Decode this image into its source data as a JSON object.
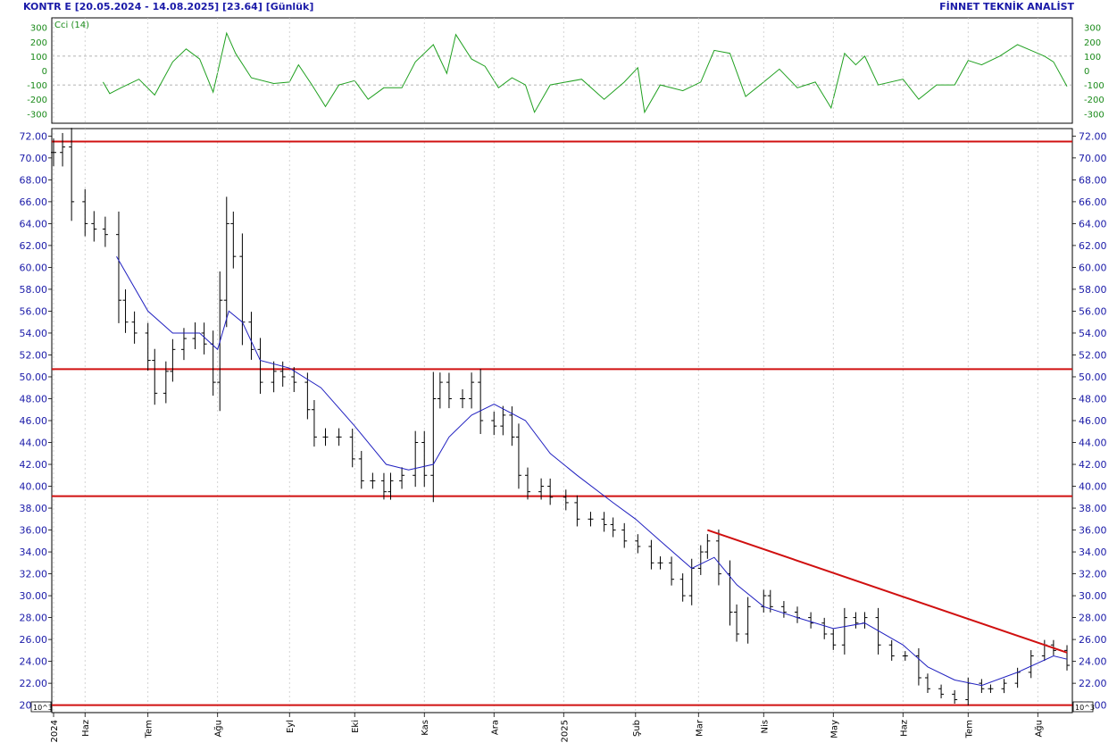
{
  "header": {
    "left": "KONTR E  [20.05.2024 - 14.08.2025]  [23.64]  [Günlük]",
    "right": "FİNNET TEKNİK ANALİST"
  },
  "cci_panel": {
    "label": "Cci (14)",
    "ticks": [
      300,
      200,
      100,
      0,
      -100,
      -200,
      -300
    ],
    "ylim": [
      -360,
      360
    ],
    "line_color": "#20a020"
  },
  "price_panel": {
    "ticks": [
      "72.00",
      "70.00",
      "68.00",
      "66.00",
      "64.00",
      "62.00",
      "60.00",
      "58.00",
      "56.00",
      "54.00",
      "52.00",
      "50.00",
      "48.00",
      "46.00",
      "44.00",
      "42.00",
      "40.00",
      "38.00",
      "36.00",
      "34.00",
      "32.00",
      "30.00",
      "28.00",
      "26.00",
      "24.00",
      "22.00",
      "20.00"
    ],
    "ylim": [
      19.4,
      72.6
    ],
    "scale_label": "10^3"
  },
  "x_axis": {
    "labels": [
      {
        "t": "2024-05-20",
        "label": "2024"
      },
      {
        "t": "2024-06-03",
        "label": "Haz"
      },
      {
        "t": "2024-07-01",
        "label": "Tem"
      },
      {
        "t": "2024-08-01",
        "label": "Ağu"
      },
      {
        "t": "2024-09-02",
        "label": "Eyl"
      },
      {
        "t": "2024-10-01",
        "label": "Eki"
      },
      {
        "t": "2024-11-01",
        "label": "Kas"
      },
      {
        "t": "2024-12-02",
        "label": "Ara"
      },
      {
        "t": "2025-01-02",
        "label": "2025"
      },
      {
        "t": "2025-02-03",
        "label": "Şub"
      },
      {
        "t": "2025-03-03",
        "label": "Mar"
      },
      {
        "t": "2025-04-01",
        "label": "Nis"
      },
      {
        "t": "2025-05-02",
        "label": "May"
      },
      {
        "t": "2025-06-02",
        "label": "Haz"
      },
      {
        "t": "2025-07-01",
        "label": "Tem"
      },
      {
        "t": "2025-08-01",
        "label": "Ağu"
      }
    ],
    "start": "2024-05-20",
    "end": "2025-08-14"
  },
  "chart_data": {
    "type": "line",
    "title": "KONTR E  [20.05.2024 - 14.08.2025]  [23.64]  [Günlük]",
    "last_price": 23.64,
    "series": [
      {
        "type": "ohlc",
        "color": "#000000",
        "points": [
          [
            "2024-05-20",
            70.5
          ],
          [
            "2024-05-24",
            71.0
          ],
          [
            "2024-05-28",
            66.0
          ],
          [
            "2024-06-03",
            64.0
          ],
          [
            "2024-06-07",
            63.5
          ],
          [
            "2024-06-12",
            63.0
          ],
          [
            "2024-06-18",
            57.0
          ],
          [
            "2024-06-21",
            55.0
          ],
          [
            "2024-06-25",
            54.0
          ],
          [
            "2024-07-01",
            51.5
          ],
          [
            "2024-07-04",
            48.5
          ],
          [
            "2024-07-09",
            50.5
          ],
          [
            "2024-07-12",
            52.5
          ],
          [
            "2024-07-17",
            53.5
          ],
          [
            "2024-07-22",
            54.0
          ],
          [
            "2024-07-26",
            53.0
          ],
          [
            "2024-07-30",
            49.5
          ],
          [
            "2024-08-02",
            57.0
          ],
          [
            "2024-08-05",
            64.0
          ],
          [
            "2024-08-08",
            61.0
          ],
          [
            "2024-08-12",
            55.0
          ],
          [
            "2024-08-16",
            52.5
          ],
          [
            "2024-08-20",
            49.5
          ],
          [
            "2024-08-26",
            50.5
          ],
          [
            "2024-08-30",
            50.0
          ],
          [
            "2024-09-04",
            49.5
          ],
          [
            "2024-09-10",
            47.0
          ],
          [
            "2024-09-13",
            44.5
          ],
          [
            "2024-09-18",
            44.5
          ],
          [
            "2024-09-24",
            44.5
          ],
          [
            "2024-09-30",
            42.5
          ],
          [
            "2024-10-04",
            40.5
          ],
          [
            "2024-10-09",
            40.5
          ],
          [
            "2024-10-14",
            39.5
          ],
          [
            "2024-10-17",
            40.5
          ],
          [
            "2024-10-22",
            41.0
          ],
          [
            "2024-10-28",
            44.0
          ],
          [
            "2024-11-01",
            41.0
          ],
          [
            "2024-11-05",
            48.0
          ],
          [
            "2024-11-08",
            49.5
          ],
          [
            "2024-11-12",
            48.0
          ],
          [
            "2024-11-18",
            48.0
          ],
          [
            "2024-11-22",
            49.5
          ],
          [
            "2024-11-26",
            46.0
          ],
          [
            "2024-12-02",
            45.5
          ],
          [
            "2024-12-06",
            46.5
          ],
          [
            "2024-12-10",
            44.5
          ],
          [
            "2024-12-13",
            41.0
          ],
          [
            "2024-12-17",
            39.5
          ],
          [
            "2024-12-23",
            40.0
          ],
          [
            "2024-12-27",
            39.0
          ],
          [
            "2025-01-03",
            38.5
          ],
          [
            "2025-01-08",
            37.0
          ],
          [
            "2025-01-14",
            37.0
          ],
          [
            "2025-01-20",
            36.5
          ],
          [
            "2025-01-24",
            36.0
          ],
          [
            "2025-01-29",
            35.0
          ],
          [
            "2025-02-04",
            34.5
          ],
          [
            "2025-02-10",
            33.0
          ],
          [
            "2025-02-14",
            33.0
          ],
          [
            "2025-02-19",
            31.5
          ],
          [
            "2025-02-24",
            30.0
          ],
          [
            "2025-02-28",
            32.5
          ],
          [
            "2025-03-04",
            34.0
          ],
          [
            "2025-03-07",
            35.0
          ],
          [
            "2025-03-12",
            32.0
          ],
          [
            "2025-03-17",
            28.5
          ],
          [
            "2025-03-20",
            26.5
          ],
          [
            "2025-03-25",
            29.0
          ],
          [
            "2025-04-01",
            30.0
          ],
          [
            "2025-04-04",
            29.0
          ],
          [
            "2025-04-10",
            28.5
          ],
          [
            "2025-04-16",
            28.0
          ],
          [
            "2025-04-22",
            27.5
          ],
          [
            "2025-04-28",
            26.5
          ],
          [
            "2025-05-02",
            25.5
          ],
          [
            "2025-05-07",
            28.0
          ],
          [
            "2025-05-12",
            27.5
          ],
          [
            "2025-05-16",
            28.0
          ],
          [
            "2025-05-22",
            25.5
          ],
          [
            "2025-05-28",
            24.5
          ],
          [
            "2025-06-03",
            24.5
          ],
          [
            "2025-06-09",
            22.5
          ],
          [
            "2025-06-13",
            21.5
          ],
          [
            "2025-06-19",
            21.0
          ],
          [
            "2025-06-25",
            20.5
          ],
          [
            "2025-07-01",
            22.0
          ],
          [
            "2025-07-07",
            21.5
          ],
          [
            "2025-07-11",
            21.5
          ],
          [
            "2025-07-17",
            22.0
          ],
          [
            "2025-07-23",
            23.0
          ],
          [
            "2025-07-29",
            24.5
          ],
          [
            "2025-08-04",
            25.5
          ],
          [
            "2025-08-08",
            25.0
          ],
          [
            "2025-08-14",
            23.64
          ]
        ]
      },
      {
        "type": "moving-average",
        "color": "#2020c0",
        "points": [
          [
            "2024-06-17",
            61.0
          ],
          [
            "2024-07-01",
            56.0
          ],
          [
            "2024-07-12",
            54.0
          ],
          [
            "2024-07-24",
            54.0
          ],
          [
            "2024-08-01",
            52.5
          ],
          [
            "2024-08-06",
            56.0
          ],
          [
            "2024-08-12",
            55.0
          ],
          [
            "2024-08-20",
            51.5
          ],
          [
            "2024-09-02",
            50.8
          ],
          [
            "2024-09-16",
            49.0
          ],
          [
            "2024-10-01",
            45.5
          ],
          [
            "2024-10-15",
            42.0
          ],
          [
            "2024-10-25",
            41.5
          ],
          [
            "2024-11-05",
            42.0
          ],
          [
            "2024-11-12",
            44.5
          ],
          [
            "2024-11-22",
            46.5
          ],
          [
            "2024-12-02",
            47.5
          ],
          [
            "2024-12-16",
            46.0
          ],
          [
            "2024-12-27",
            43.0
          ],
          [
            "2025-01-08",
            41.0
          ],
          [
            "2025-01-24",
            38.5
          ],
          [
            "2025-02-03",
            37.0
          ],
          [
            "2025-02-14",
            35.0
          ],
          [
            "2025-02-28",
            32.5
          ],
          [
            "2025-03-10",
            33.5
          ],
          [
            "2025-03-20",
            31.0
          ],
          [
            "2025-04-01",
            29.0
          ],
          [
            "2025-04-16",
            28.0
          ],
          [
            "2025-05-02",
            27.0
          ],
          [
            "2025-05-16",
            27.5
          ],
          [
            "2025-06-02",
            25.5
          ],
          [
            "2025-06-13",
            23.5
          ],
          [
            "2025-06-25",
            22.3
          ],
          [
            "2025-07-07",
            21.8
          ],
          [
            "2025-07-23",
            23.0
          ],
          [
            "2025-08-08",
            24.5
          ],
          [
            "2025-08-14",
            24.2
          ]
        ]
      },
      {
        "type": "cci",
        "color": "#20a020",
        "points": [
          [
            "2024-06-11",
            -80
          ],
          [
            "2024-06-14",
            -160
          ],
          [
            "2024-06-19",
            -120
          ],
          [
            "2024-06-27",
            -60
          ],
          [
            "2024-07-04",
            -170
          ],
          [
            "2024-07-12",
            60
          ],
          [
            "2024-07-18",
            150
          ],
          [
            "2024-07-24",
            80
          ],
          [
            "2024-07-30",
            -150
          ],
          [
            "2024-08-05",
            260
          ],
          [
            "2024-08-09",
            120
          ],
          [
            "2024-08-16",
            -50
          ],
          [
            "2024-08-26",
            -90
          ],
          [
            "2024-09-02",
            -80
          ],
          [
            "2024-09-06",
            40
          ],
          [
            "2024-09-12",
            -100
          ],
          [
            "2024-09-18",
            -250
          ],
          [
            "2024-09-24",
            -100
          ],
          [
            "2024-10-01",
            -70
          ],
          [
            "2024-10-07",
            -200
          ],
          [
            "2024-10-14",
            -120
          ],
          [
            "2024-10-22",
            -120
          ],
          [
            "2024-10-28",
            60
          ],
          [
            "2024-11-05",
            180
          ],
          [
            "2024-11-11",
            -20
          ],
          [
            "2024-11-15",
            250
          ],
          [
            "2024-11-22",
            80
          ],
          [
            "2024-11-28",
            30
          ],
          [
            "2024-12-04",
            -120
          ],
          [
            "2024-12-10",
            -50
          ],
          [
            "2024-12-16",
            -100
          ],
          [
            "2024-12-20",
            -290
          ],
          [
            "2024-12-27",
            -100
          ],
          [
            "2025-01-03",
            -80
          ],
          [
            "2025-01-10",
            -60
          ],
          [
            "2025-01-20",
            -200
          ],
          [
            "2025-01-29",
            -80
          ],
          [
            "2025-02-04",
            20
          ],
          [
            "2025-02-07",
            -290
          ],
          [
            "2025-02-14",
            -100
          ],
          [
            "2025-02-24",
            -140
          ],
          [
            "2025-03-04",
            -80
          ],
          [
            "2025-03-10",
            140
          ],
          [
            "2025-03-17",
            120
          ],
          [
            "2025-03-24",
            -180
          ],
          [
            "2025-04-01",
            -80
          ],
          [
            "2025-04-08",
            10
          ],
          [
            "2025-04-16",
            -120
          ],
          [
            "2025-04-24",
            -80
          ],
          [
            "2025-05-01",
            -260
          ],
          [
            "2025-05-07",
            120
          ],
          [
            "2025-05-12",
            40
          ],
          [
            "2025-05-16",
            100
          ],
          [
            "2025-05-22",
            -100
          ],
          [
            "2025-06-02",
            -60
          ],
          [
            "2025-06-09",
            -200
          ],
          [
            "2025-06-17",
            -100
          ],
          [
            "2025-06-25",
            -100
          ],
          [
            "2025-07-01",
            70
          ],
          [
            "2025-07-07",
            40
          ],
          [
            "2025-07-15",
            100
          ],
          [
            "2025-07-23",
            180
          ],
          [
            "2025-07-29",
            140
          ],
          [
            "2025-08-04",
            100
          ],
          [
            "2025-08-08",
            60
          ],
          [
            "2025-08-14",
            -110
          ]
        ]
      }
    ],
    "annotations": {
      "horizontal_lines": [
        71.5,
        50.7,
        39.1,
        20.0
      ],
      "trendline": [
        [
          "2025-03-07",
          36.0
        ],
        [
          "2025-08-14",
          24.8
        ]
      ]
    }
  }
}
